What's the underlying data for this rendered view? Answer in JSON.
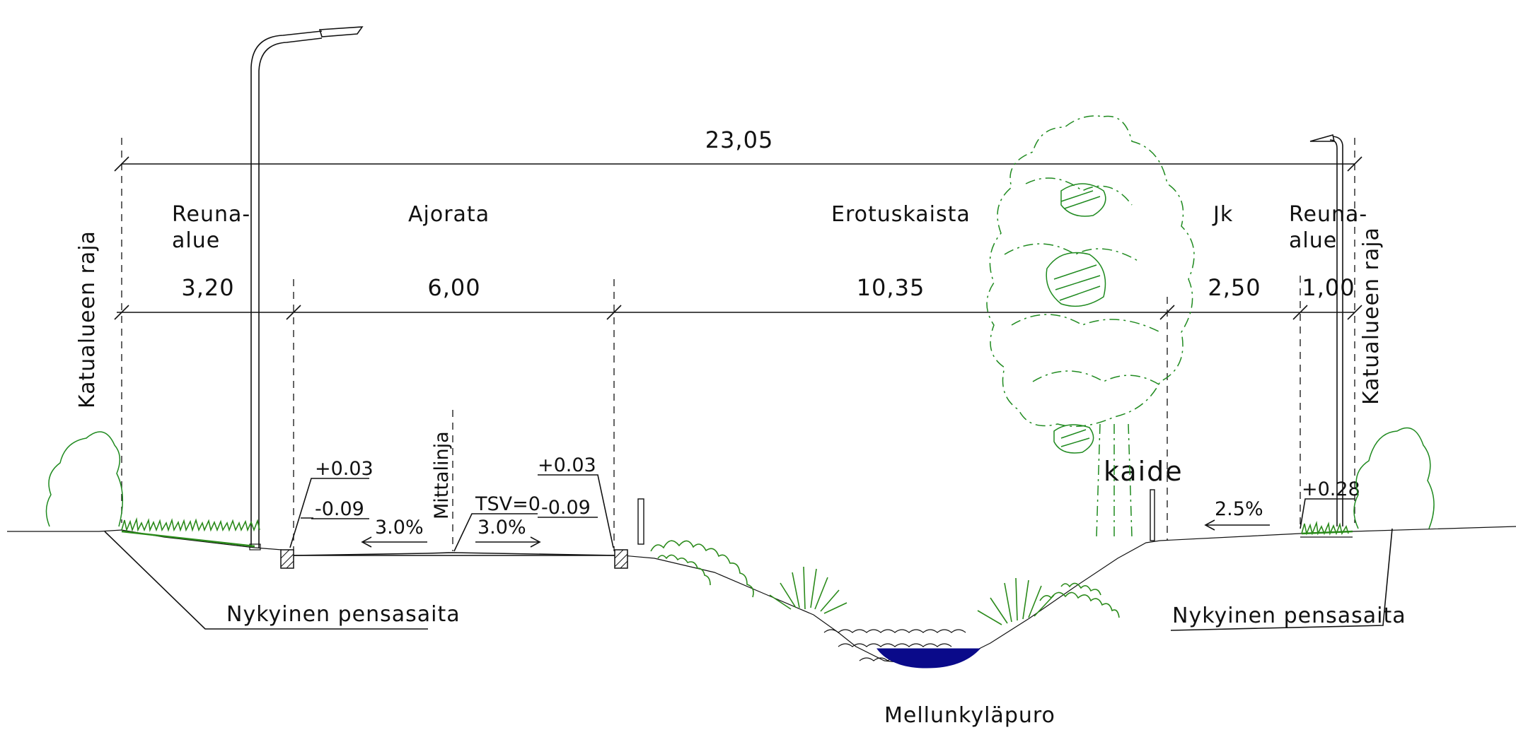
{
  "overall_width": "23,05",
  "zones": [
    {
      "line1": "Reuna-",
      "line2": "alue",
      "width": "3,20"
    },
    {
      "line1": "Ajorata",
      "line2": "",
      "width": "6,00"
    },
    {
      "line1": "Erotuskaista",
      "line2": "",
      "width": "10,35"
    },
    {
      "line1": "Jk",
      "line2": "",
      "width": "2,50"
    },
    {
      "line1": "Reuna-",
      "line2": "alue",
      "width": "1,00"
    }
  ],
  "boundary_label": "Katualueen raja",
  "reference_line": "Mittalinja",
  "tsv": "TSV=0",
  "curb_left": {
    "top": "+0.03",
    "bottom": "-0.09"
  },
  "curb_right": {
    "top": "+0.03",
    "bottom": "-0.09"
  },
  "slope_left": "3.0%",
  "slope_right": "3.0%",
  "slope_walkway": "2.5%",
  "walkway_edge": "+0.28",
  "railing": "kaide",
  "hedge_label": "Nykyinen pensasaita",
  "stream_label": "Mellunkyläpuro",
  "colors": {
    "vegetation": "#2a8a1a",
    "water": "#0a0a8a",
    "line": "#111111"
  }
}
